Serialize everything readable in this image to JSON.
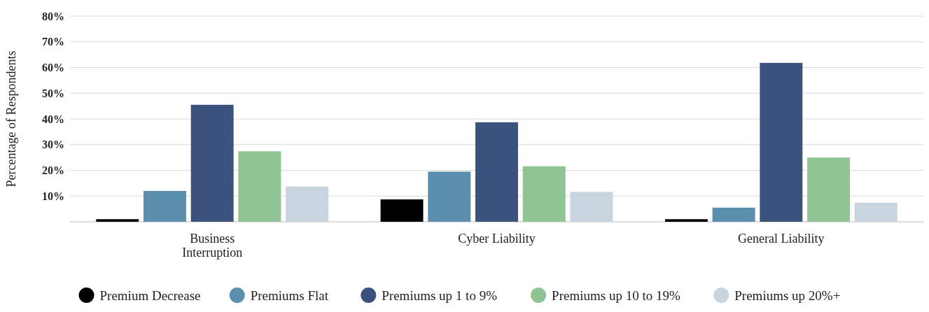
{
  "chart_data": {
    "type": "bar",
    "ylabel": "Percentage of Respondents",
    "categories": [
      "Business Interruption",
      "Cyber Liability",
      "General Liability"
    ],
    "series": [
      {
        "name": "Premium Decrease",
        "color": "#000000",
        "values": [
          1,
          8.7,
          1
        ]
      },
      {
        "name": "Premiums Flat",
        "color": "#5b8fae",
        "values": [
          12,
          19.5,
          5.5
        ]
      },
      {
        "name": "Premiums up 1 to 9%",
        "color": "#3a527c",
        "values": [
          45.5,
          38.7,
          61.8
        ]
      },
      {
        "name": "Premiums up 10 to 19%",
        "color": "#90c495",
        "values": [
          27.4,
          21.6,
          25
        ]
      },
      {
        "name": "Premiums up 20%+",
        "color": "#c8d4de",
        "values": [
          13.7,
          11.6,
          7.4
        ]
      }
    ],
    "ylim": [
      0,
      80
    ],
    "yticks": [
      {
        "value": 0,
        "label": null
      },
      {
        "value": 10,
        "label": "10%"
      },
      {
        "value": 20,
        "label": "20%"
      },
      {
        "value": 30,
        "label": "30%"
      },
      {
        "value": 40,
        "label": "40%"
      },
      {
        "value": 50,
        "label": "50%"
      },
      {
        "value": 60,
        "label": "60%"
      },
      {
        "value": 70,
        "label": "70%"
      },
      {
        "value": 80,
        "label": "80%"
      }
    ],
    "grid": "y",
    "legend": "bottom"
  }
}
